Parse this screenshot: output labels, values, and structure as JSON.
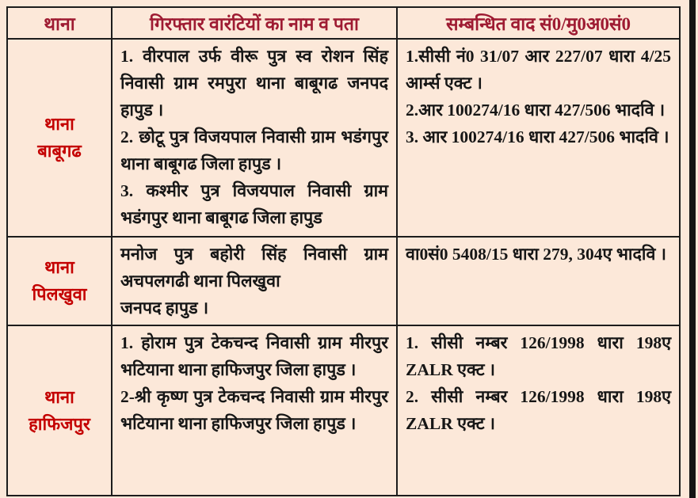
{
  "colors": {
    "page_background": "#fce8d9",
    "header_text": "#9e1b32",
    "station_text": "#c40000",
    "body_text": "#161616",
    "table_border": "#1c1c1c",
    "right_edge_bar": "#141414"
  },
  "table": {
    "headers": [
      "थाना",
      "गिरफ्तार वारंटियों का नाम व पता",
      "सम्बन्धित वाद सं0/मु0अ0सं0"
    ],
    "rows": [
      {
        "station_lines": [
          "थाना",
          "बाबूगढ"
        ],
        "names": [
          "1. वीरपाल उर्फ वीरू पुत्र स्व रोशन सिंह निवासी ग्राम रमपुरा थाना बाबूगढ जनपद हापुड ।",
          "2.  छोटू पुत्र विजयपाल निवासी ग्राम भडंगपुर थाना बाबूगढ जिला हापुड ।",
          "3. कश्मीर पुत्र विजयपाल निवासी ग्राम भडंगपुर थाना बाबूगढ जिला हापुड"
        ],
        "cases": [
          "1.सीसी नं0 31/07 आर 227/07 धारा 4/25 आर्म्स एक्ट ।",
          "2.आर 100274/16 धारा 427/506 भादवि ।",
          "3. आर 100274/16 धारा 427/506 भादवि ।"
        ]
      },
      {
        "station_lines": [
          "थाना",
          "पिलखुवा"
        ],
        "names": [
          "मनोज पुत्र बहोरी सिंह निवासी ग्राम अचपलगढी थाना पिलखुवा",
          "जनपद हापुड ।"
        ],
        "cases": [
          "वा0सं0 5408/15 धारा 279, 304ए भादवि ।"
        ]
      },
      {
        "station_lines": [
          "थाना",
          "हाफिजपुर"
        ],
        "names": [
          "1. होराम पुत्र टेकचन्द निवासी ग्राम मीरपुर भटियाना थाना हाफिजपुर जिला हापुड ।",
          "2-श्री कृष्ण पुत्र टेकचन्द निवासी ग्राम मीरपुर भटियाना थाना हाफिजपुर जिला हापुड ।"
        ],
        "cases": [
          "1.  सीसी नम्बर 126/1998 धारा 198ए ZALR एक्ट ।",
          "2.  सीसी नम्बर 126/1998 धारा 198ए ZALR एक्ट ।"
        ]
      }
    ]
  }
}
